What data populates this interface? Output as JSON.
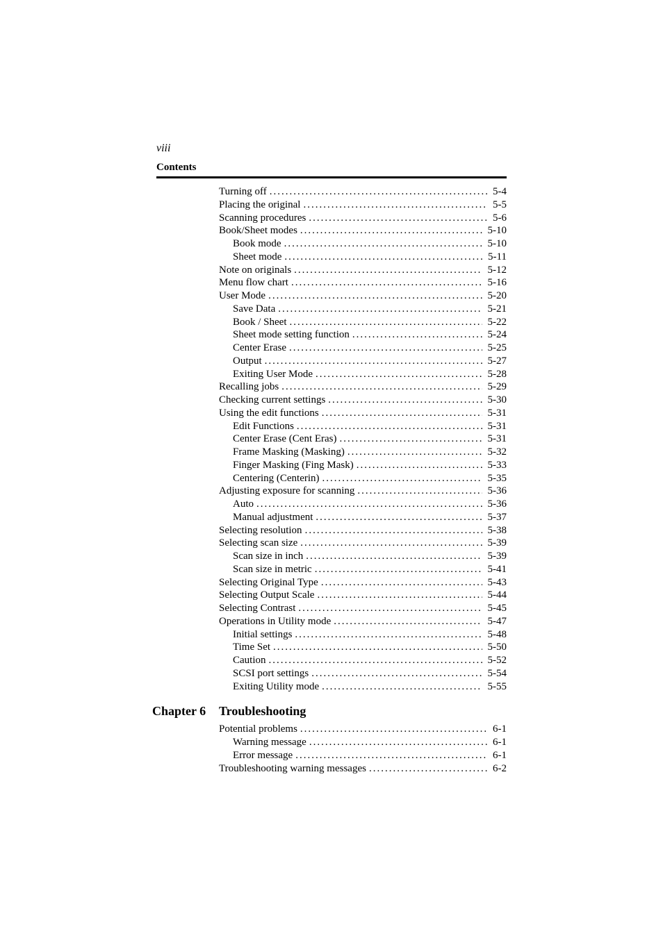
{
  "page_number": "viii",
  "contents_label": "Contents",
  "entries": [
    {
      "indent": 0,
      "title": "Turning off",
      "page": "5-4"
    },
    {
      "indent": 0,
      "title": "Placing the original",
      "page": "5-5"
    },
    {
      "indent": 0,
      "title": "Scanning procedures",
      "page": "5-6"
    },
    {
      "indent": 0,
      "title": "Book/Sheet modes",
      "page": "5-10"
    },
    {
      "indent": 1,
      "title": "Book mode",
      "page": "5-10"
    },
    {
      "indent": 1,
      "title": "Sheet mode",
      "page": "5-11"
    },
    {
      "indent": 0,
      "title": "Note on originals",
      "page": "5-12"
    },
    {
      "indent": 0,
      "title": "Menu flow chart",
      "page": "5-16"
    },
    {
      "indent": 0,
      "title": "User Mode",
      "page": "5-20"
    },
    {
      "indent": 1,
      "title": "Save Data",
      "page": "5-21"
    },
    {
      "indent": 1,
      "title": "Book / Sheet",
      "page": "5-22"
    },
    {
      "indent": 1,
      "title": "Sheet mode setting function",
      "page": "5-24"
    },
    {
      "indent": 1,
      "title": "Center Erase",
      "page": "5-25"
    },
    {
      "indent": 1,
      "title": "Output",
      "page": "5-27"
    },
    {
      "indent": 1,
      "title": "Exiting User Mode",
      "page": "5-28"
    },
    {
      "indent": 0,
      "title": "Recalling jobs",
      "page": "5-29"
    },
    {
      "indent": 0,
      "title": "Checking current settings",
      "page": "5-30"
    },
    {
      "indent": 0,
      "title": "Using the edit functions",
      "page": "5-31"
    },
    {
      "indent": 1,
      "title": "Edit Functions",
      "page": "5-31"
    },
    {
      "indent": 1,
      "title": "Center Erase (Cent Eras)",
      "page": "5-31"
    },
    {
      "indent": 1,
      "title": "Frame Masking (Masking)",
      "page": "5-32"
    },
    {
      "indent": 1,
      "title": "Finger Masking (Fing Mask)",
      "page": "5-33"
    },
    {
      "indent": 1,
      "title": "Centering (Centerin)",
      "page": "5-35"
    },
    {
      "indent": 0,
      "title": "Adjusting exposure for scanning",
      "page": "5-36"
    },
    {
      "indent": 1,
      "title": "Auto",
      "page": "5-36"
    },
    {
      "indent": 1,
      "title": "Manual adjustment",
      "page": "5-37"
    },
    {
      "indent": 0,
      "title": "Selecting resolution",
      "page": "5-38"
    },
    {
      "indent": 0,
      "title": "Selecting scan size",
      "page": "5-39"
    },
    {
      "indent": 1,
      "title": "Scan size in inch",
      "page": "5-39"
    },
    {
      "indent": 1,
      "title": "Scan size in metric",
      "page": "5-41"
    },
    {
      "indent": 0,
      "title": "Selecting Original Type",
      "page": "5-43"
    },
    {
      "indent": 0,
      "title": "Selecting Output Scale",
      "page": "5-44"
    },
    {
      "indent": 0,
      "title": "Selecting Contrast",
      "page": "5-45"
    },
    {
      "indent": 0,
      "title": "Operations in Utility mode",
      "page": "5-47"
    },
    {
      "indent": 1,
      "title": "Initial settings",
      "page": "5-48"
    },
    {
      "indent": 1,
      "title": "Time Set",
      "page": "5-50"
    },
    {
      "indent": 1,
      "title": "Caution",
      "page": "5-52"
    },
    {
      "indent": 1,
      "title": "SCSI port settings",
      "page": "5-54"
    },
    {
      "indent": 1,
      "title": "Exiting Utility mode",
      "page": "5-55"
    }
  ],
  "chapter": {
    "label": "Chapter 6",
    "title": "Troubleshooting",
    "entries": [
      {
        "indent": 0,
        "title": "Potential problems",
        "page": "6-1"
      },
      {
        "indent": 1,
        "title": "Warning message",
        "page": "6-1"
      },
      {
        "indent": 1,
        "title": "Error message",
        "page": "6-1"
      },
      {
        "indent": 0,
        "title": "Troubleshooting warning messages",
        "page": "6-2"
      }
    ]
  }
}
